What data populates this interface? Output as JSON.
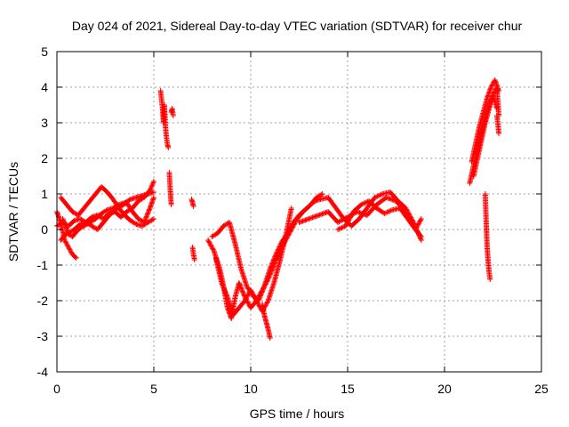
{
  "chart_data": {
    "type": "scatter",
    "title": "Day 024 of 2021, Sidereal Day-to-day VTEC variation (SDTVAR) for receiver chur",
    "xlabel": "GPS time / hours",
    "ylabel": "SDTVAR / TECUs",
    "xlim": [
      0,
      25
    ],
    "ylim": [
      -4,
      5
    ],
    "xticks": [
      0,
      5,
      10,
      15,
      20,
      25
    ],
    "yticks": [
      -4,
      -3,
      -2,
      -1,
      0,
      1,
      2,
      3,
      4,
      5
    ],
    "grid": true,
    "marker": "+",
    "series": [
      {
        "name": "SDTVAR",
        "color": "#ff0000",
        "arcs": [
          {
            "x": [
              0.0,
              0.3,
              0.6,
              0.9,
              1.2,
              1.5,
              1.8,
              2.1,
              2.4,
              2.7,
              3.0,
              3.3,
              3.6,
              3.9,
              4.2,
              4.5,
              4.8,
              5.0
            ],
            "y": [
              0.1,
              0.2,
              0.1,
              0.25,
              0.3,
              0.2,
              0.35,
              0.4,
              0.3,
              0.45,
              0.5,
              0.35,
              0.5,
              0.6,
              0.8,
              0.9,
              1.1,
              1.35
            ]
          },
          {
            "x": [
              0.0,
              0.2,
              0.4,
              0.6,
              0.8,
              1.0
            ],
            "y": [
              0.5,
              0.2,
              -0.3,
              -0.5,
              -0.7,
              -0.8
            ]
          },
          {
            "x": [
              0.2,
              0.5,
              0.8,
              1.1,
              1.4,
              1.7,
              2.0,
              2.3,
              2.6,
              2.9,
              3.2,
              3.5,
              3.8,
              4.1,
              4.4,
              4.7,
              5.0
            ],
            "y": [
              -0.3,
              -0.1,
              -0.2,
              0.0,
              0.1,
              0.2,
              0.3,
              0.45,
              0.55,
              0.6,
              0.7,
              0.75,
              0.85,
              0.9,
              0.95,
              1.0,
              1.05
            ]
          },
          {
            "x": [
              0.2,
              0.5,
              0.8,
              1.1,
              1.4,
              1.7,
              2.0,
              2.3,
              2.6,
              2.9,
              3.2,
              3.5,
              3.8,
              4.1,
              4.4,
              4.7,
              5.0
            ],
            "y": [
              0.9,
              0.7,
              0.5,
              0.4,
              0.6,
              0.8,
              1.0,
              1.2,
              1.05,
              0.85,
              0.6,
              0.4,
              0.25,
              0.15,
              0.1,
              0.2,
              0.3
            ]
          },
          {
            "x": [
              0.3,
              0.6,
              0.9,
              1.2,
              1.5,
              1.8,
              2.1,
              2.4,
              2.7,
              3.0,
              3.3,
              3.6,
              3.9,
              4.2,
              4.5,
              4.8,
              5.0
            ],
            "y": [
              0.3,
              -0.1,
              0.0,
              0.15,
              0.2,
              0.1,
              0.0,
              0.2,
              0.4,
              0.55,
              0.65,
              0.75,
              0.5,
              0.3,
              0.2,
              0.6,
              0.9
            ]
          },
          {
            "x": [
              5.35,
              5.45,
              5.5,
              5.55,
              5.6,
              5.65,
              5.7,
              5.75
            ],
            "y": [
              3.9,
              3.4,
              3.0,
              3.5,
              2.9,
              2.6,
              2.4,
              2.3
            ]
          },
          {
            "x": [
              5.9,
              5.95,
              6.0
            ],
            "y": [
              3.3,
              3.4,
              3.2
            ]
          },
          {
            "x": [
              5.8,
              5.85,
              5.9
            ],
            "y": [
              1.6,
              1.1,
              0.7
            ]
          },
          {
            "x": [
              6.95,
              7.0,
              7.05
            ],
            "y": [
              0.85,
              0.75,
              0.65
            ]
          },
          {
            "x": [
              7.0,
              7.05,
              7.1
            ],
            "y": [
              -0.5,
              -0.7,
              -0.85
            ]
          },
          {
            "x": [
              7.8,
              8.1,
              8.4,
              8.6,
              8.8,
              9.0,
              9.2,
              9.4,
              9.7,
              10.0,
              10.3,
              10.6,
              10.9,
              11.2,
              11.5,
              11.8,
              12.1,
              12.4,
              12.7,
              13.0,
              13.3,
              13.6,
              14.0
            ],
            "y": [
              -0.3,
              -0.6,
              -1.1,
              -1.6,
              -2.2,
              -2.5,
              -1.9,
              -1.5,
              -1.9,
              -2.2,
              -2.0,
              -1.7,
              -1.4,
              -1.0,
              -0.6,
              -0.3,
              0.0,
              0.3,
              0.5,
              0.65,
              0.8,
              0.85,
              0.9
            ]
          },
          {
            "x": [
              8.0,
              8.3,
              8.6,
              8.9,
              9.2,
              9.5,
              9.8,
              10.1,
              10.4,
              10.7,
              11.0,
              11.3,
              11.6,
              11.9,
              12.2,
              12.5,
              12.8,
              13.1,
              13.4,
              13.7
            ],
            "y": [
              -0.2,
              -0.1,
              0.1,
              0.2,
              -0.4,
              -1.1,
              -1.6,
              -1.85,
              -2.0,
              -1.6,
              -1.1,
              -0.7,
              -0.35,
              -0.1,
              0.2,
              0.4,
              0.55,
              0.7,
              0.9,
              1.0
            ]
          },
          {
            "x": [
              8.2,
              8.5,
              8.8,
              9.1,
              9.4,
              9.7,
              10.0,
              10.3,
              10.6,
              10.9,
              11.2,
              11.5,
              11.8,
              12.1
            ],
            "y": [
              -0.8,
              -1.5,
              -1.9,
              -2.4,
              -2.2,
              -2.0,
              -1.7,
              -2.0,
              -2.3,
              -2.0,
              -1.5,
              -0.9,
              -0.2,
              0.6
            ]
          },
          {
            "x": [
              10.6,
              10.7,
              10.8,
              10.9,
              11.0
            ],
            "y": [
              -2.1,
              -2.4,
              -2.6,
              -2.8,
              -3.05
            ]
          },
          {
            "x": [
              12.5,
              13.0,
              13.5,
              14.0,
              14.5,
              15.0,
              15.5,
              16.0,
              16.5,
              17.0,
              17.5,
              18.0,
              18.5,
              18.8
            ],
            "y": [
              0.2,
              0.3,
              0.4,
              0.5,
              0.2,
              0.35,
              0.5,
              0.4,
              0.7,
              0.9,
              0.8,
              0.5,
              0.0,
              -0.2
            ]
          },
          {
            "x": [
              14.0,
              14.4,
              14.8,
              15.2,
              15.6,
              16.0,
              16.4,
              16.8,
              17.2,
              17.6,
              18.0,
              18.4,
              18.8
            ],
            "y": [
              0.9,
              0.6,
              0.3,
              0.1,
              0.3,
              0.6,
              0.9,
              1.0,
              1.05,
              0.8,
              0.6,
              0.2,
              -0.3
            ]
          },
          {
            "x": [
              14.5,
              14.9,
              15.3,
              15.7,
              16.1,
              16.5,
              16.9,
              17.3,
              17.7,
              18.1,
              18.5,
              18.8
            ],
            "y": [
              0.0,
              0.1,
              0.5,
              0.7,
              0.8,
              0.6,
              0.45,
              0.55,
              0.6,
              0.3,
              0.0,
              0.3
            ]
          },
          {
            "x": [
              21.3,
              21.5,
              21.7,
              21.9,
              22.1,
              22.3,
              22.5,
              22.7
            ],
            "y": [
              1.3,
              1.8,
              2.2,
              2.7,
              3.1,
              3.5,
              3.8,
              3.4
            ]
          },
          {
            "x": [
              21.4,
              21.6,
              21.8,
              22.0,
              22.2,
              22.4,
              22.6,
              22.8
            ],
            "y": [
              1.9,
              2.4,
              2.9,
              3.3,
              3.7,
              4.0,
              4.2,
              3.9
            ]
          },
          {
            "x": [
              21.5,
              21.7,
              21.9,
              22.1,
              22.3,
              22.5,
              22.7,
              22.8
            ],
            "y": [
              1.5,
              2.0,
              2.5,
              3.0,
              3.4,
              3.8,
              4.0,
              3.2
            ]
          },
          {
            "x": [
              22.1,
              22.15,
              22.2,
              22.25,
              22.3,
              22.35
            ],
            "y": [
              1.0,
              0.2,
              -0.5,
              -0.9,
              -1.2,
              -1.4
            ]
          },
          {
            "x": [
              22.7,
              22.75,
              22.8
            ],
            "y": [
              3.2,
              3.0,
              2.7
            ]
          }
        ]
      }
    ]
  }
}
